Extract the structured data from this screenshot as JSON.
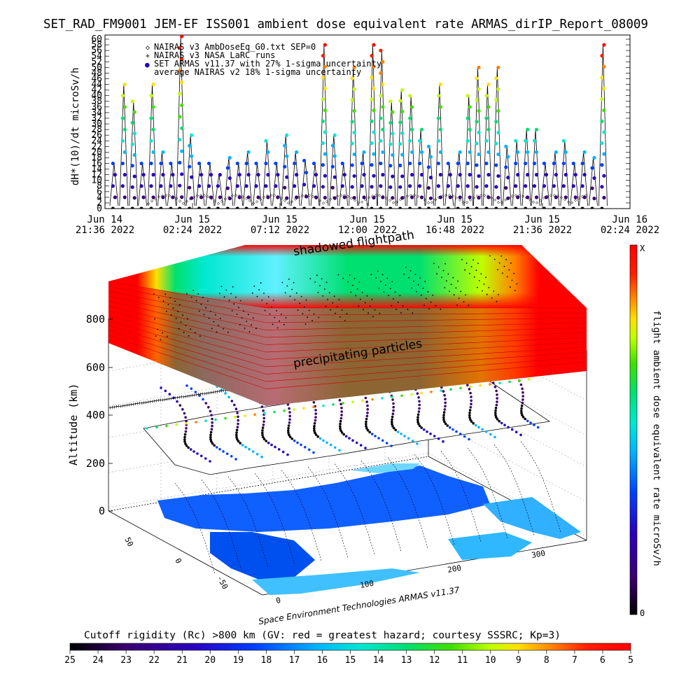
{
  "top_title": "SET_RAD_FM9001  JEM-EF ISS001 ambient dose equivalent rate ARMAS_dirIP_Report_08009",
  "timeseries": {
    "ylabel": "dH*(10)/dt microSv/h",
    "y_ticks": [
      "0",
      "2",
      "4",
      "6",
      "8",
      "10",
      "12",
      "14",
      "16",
      "18",
      "20",
      "22",
      "24",
      "26",
      "28",
      "30",
      "32",
      "34",
      "36",
      "38",
      "40",
      "42",
      "44",
      "46",
      "48",
      "50",
      "52",
      "54",
      "56",
      "58",
      "60"
    ],
    "x_ticks": [
      {
        "day": "Jun 14",
        "time": "21:36 2022"
      },
      {
        "day": "Jun 15",
        "time": "02:24 2022"
      },
      {
        "day": "Jun 15",
        "time": "07:12 2022"
      },
      {
        "day": "Jun 15",
        "time": "12:00 2022"
      },
      {
        "day": "Jun 15",
        "time": "16:48 2022"
      },
      {
        "day": "Jun 15",
        "time": "21:36 2022"
      },
      {
        "day": "Jun 16",
        "time": "02:24 2022"
      }
    ],
    "legend": [
      {
        "symbol": "◇",
        "text": "NAIRAS v3 AmbDoseEq_G0.txt SEP=0"
      },
      {
        "symbol": "+",
        "text": "NAIRAS v3 NASA LaRC runs"
      },
      {
        "symbol": "●",
        "text": "SET ARMAS v11.37 with 27% 1-sigma uncertainty"
      },
      {
        "symbol": "",
        "text": "average NAIRAS v2 18% 1-sigma uncertainty"
      }
    ]
  },
  "chart_data": {
    "type": "scatter",
    "xlim": [
      "Jun 14 21:36 2022",
      "Jun 16 02:24 2022"
    ],
    "ylim": [
      0,
      60
    ],
    "series": [
      {
        "name": "SET ARMAS v11.37 with 27% 1-sigma uncertainty",
        "x": [
          0.12,
          0.25,
          0.38,
          0.5,
          0.63,
          0.76,
          0.89,
          1.01,
          1.14,
          1.27,
          1.4,
          1.52,
          1.65,
          1.78,
          1.9,
          2.03,
          2.16,
          2.29,
          2.41,
          2.54,
          2.67,
          2.8,
          2.92,
          3.05,
          3.18,
          3.31,
          3.44,
          3.57,
          3.69,
          3.82,
          3.95,
          4.08,
          4.21,
          4.33,
          4.46,
          4.59,
          4.72,
          4.85,
          4.97,
          5.1,
          5.23,
          5.36,
          5.49,
          5.62,
          5.74,
          5.87,
          6.0,
          6.13,
          6.26,
          6.38,
          6.51,
          6.64
        ],
        "y": [
          16,
          44,
          38,
          16,
          44,
          20,
          16,
          61,
          26,
          16,
          16,
          12,
          18,
          16,
          20,
          16,
          24,
          16,
          26,
          20,
          17,
          16,
          58,
          26,
          16,
          50,
          20,
          58,
          56,
          38,
          42,
          40,
          28,
          22,
          44,
          16,
          20,
          40,
          50,
          44,
          50,
          22,
          24,
          28,
          28,
          16,
          20,
          24,
          16,
          20,
          18,
          58
        ]
      },
      {
        "name": "NAIRAS v3 AmbDoseEq_G0.txt SEP=0",
        "baseline": [
          0,
          6
        ]
      },
      {
        "name": "NAIRAS v3 NASA LaRC runs",
        "baseline": [
          0,
          6
        ]
      }
    ]
  },
  "plot3d": {
    "z_axis_label": "Altitude (km)",
    "z_ticks": [
      "0",
      "200",
      "400",
      "600",
      "800"
    ],
    "lat_ticks": [
      "50",
      "0",
      "-50"
    ],
    "lon_ticks": [
      "0",
      "100",
      "200",
      "300"
    ],
    "label_shadowed": "shadowed flightpath",
    "label_precip": "precipitating particles",
    "credit": "Space Environment Technologies ARMAS v11.37"
  },
  "colorbar_right": {
    "label": "flight ambient dose equivalent rate microSv/h",
    "top_label": "X",
    "bottom_label": "0"
  },
  "colorbar_bottom": {
    "title": "Cutoff rigidity (Rc) >800 km (GV: red = greatest hazard; courtesy SSSRC; Kp=3)",
    "ticks": [
      "25",
      "24",
      "23",
      "22",
      "21",
      "20",
      "19",
      "18",
      "17",
      "16",
      "15",
      "14",
      "13",
      "12",
      "11",
      "10",
      "9",
      "8",
      "7",
      "6",
      "5"
    ]
  },
  "colors": {
    "rainbow": [
      "#000000",
      "#3a0070",
      "#2a00c0",
      "#0040ff",
      "#00b4ff",
      "#00e8d0",
      "#00e070",
      "#40e000",
      "#c0ff00",
      "#ffe000",
      "#ff8000",
      "#ff2000",
      "#ff0000"
    ]
  }
}
